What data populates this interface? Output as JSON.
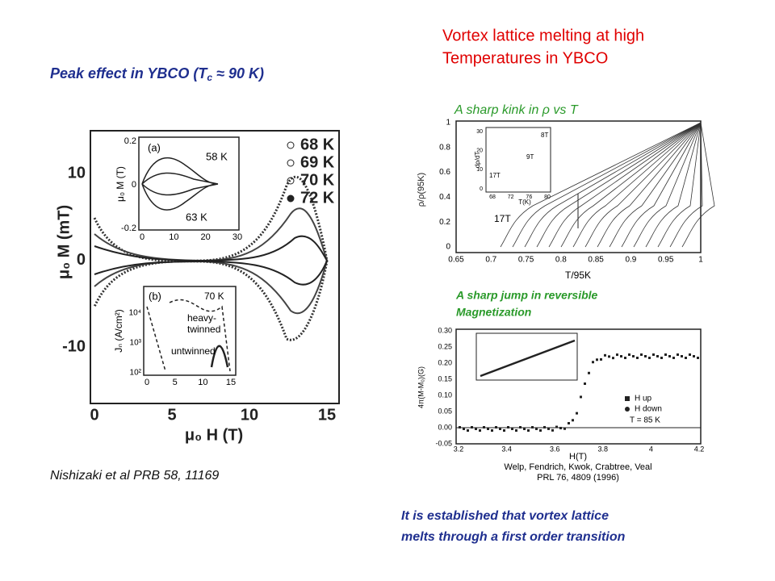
{
  "left": {
    "title": {
      "main": "Peak effect in YBCO (T",
      "sub": "c",
      "rest": " ≈ 90 K)"
    },
    "figure": {
      "yticks": [
        "10",
        "0",
        "-10"
      ],
      "xticks": [
        "0",
        "5",
        "10",
        "15"
      ],
      "ylabel": "μ₀ M  (mT)",
      "xlabel": "μ₀ H  (T)",
      "legend": [
        "68 K",
        "69 K",
        "70 K",
        "72 K"
      ],
      "inset_a": {
        "label": "(a)",
        "yticks": [
          "0.2",
          "0",
          "-0.2"
        ],
        "xticks": [
          "0",
          "10",
          "20",
          "30"
        ],
        "ylabel": "μ₀ M  (T)",
        "annotations": [
          "58 K",
          "63 K"
        ]
      },
      "inset_b": {
        "label": "(b)",
        "yticks": [
          "10⁴",
          "10³",
          "10²"
        ],
        "xticks": [
          "0",
          "5",
          "10",
          "15"
        ],
        "ylabel": "Jₙ (A/cm²)",
        "annotations": [
          "70 K",
          "heavy-",
          "twinned",
          "untwinned"
        ]
      }
    },
    "citation": "Nishizaki et al PRB 58, 11169"
  },
  "right": {
    "title": [
      "Vortex lattice melting at high",
      "Temperatures in YBCO"
    ],
    "kink": "A sharp kink in ρ  vs T",
    "figure_rho": {
      "yticks": [
        "1",
        "0.8",
        "0.6",
        "0.4",
        "0.2",
        "0"
      ],
      "xticks": [
        "0.65",
        "0.7",
        "0.75",
        "0.8",
        "0.85",
        "0.9",
        "0.95",
        "1"
      ],
      "ylabel": "ρ/ρ(95K)",
      "xlabel": "T/95K",
      "annotation": "17T",
      "inset": {
        "yticks": [
          "30",
          "20",
          "10",
          "0"
        ],
        "xticks": [
          "68",
          "72",
          "76",
          "80"
        ],
        "ylabel": "dρ/dT",
        "xlabel": "T(K)",
        "annotations": [
          "8T",
          "9T",
          "17T"
        ]
      }
    },
    "jump": [
      "A sharp jump in reversible",
      "Magnetization"
    ],
    "figure_m": {
      "yticks": [
        "0.30",
        "0.25",
        "0.20",
        "0.15",
        "0.10",
        "0.05",
        "0.00",
        "-0.05"
      ],
      "xticks": [
        "3.2",
        "3.4",
        "3.6",
        "3.8",
        "4",
        "4.2"
      ],
      "ylabel": "4π(M-M₀)(G)",
      "xlabel": "H(T)",
      "legend": [
        "H up",
        "H down"
      ],
      "annotation": "T = 85 K",
      "citation": [
        "Welp, Fendrich, Kwok, Crabtree, Veal",
        "PRL 76, 4809 (1996)"
      ]
    },
    "conclusion": [
      "It is established that vortex lattice",
      "melts through a first order transition"
    ]
  }
}
